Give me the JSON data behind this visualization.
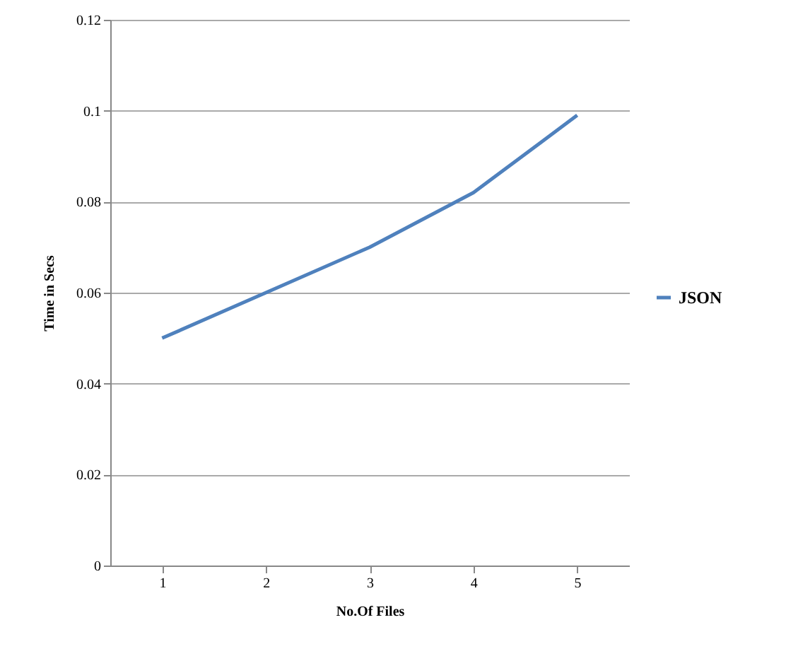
{
  "chart_data": {
    "type": "line",
    "xlabel": "No.Of Files",
    "ylabel": "Time in Secs",
    "categories": [
      "1",
      "2",
      "3",
      "4",
      "5"
    ],
    "series": [
      {
        "name": "JSON",
        "color": "#4f81bd",
        "values": [
          0.05,
          0.06,
          0.07,
          0.082,
          0.099
        ]
      }
    ],
    "ylim": [
      0,
      0.12
    ],
    "yticks": [
      0,
      0.02,
      0.04,
      0.06,
      0.08,
      0.1,
      0.12
    ],
    "grid": "y",
    "legend": "right",
    "marker": "none",
    "line_style": "solid"
  }
}
